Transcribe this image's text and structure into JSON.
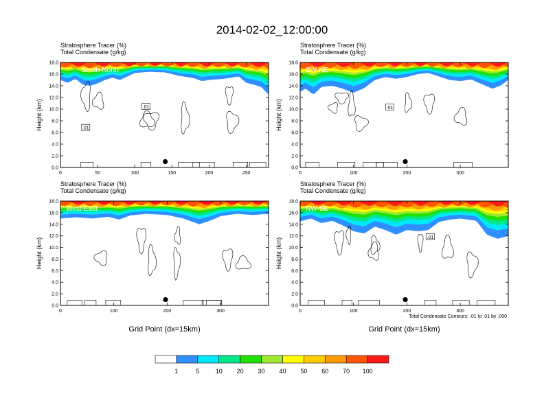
{
  "title": "2014-02-02_12:00:00",
  "chart_data": {
    "type": "heatmap",
    "colorbar": {
      "colors": [
        "#ffffff",
        "#2f8fff",
        "#00e8ff",
        "#00e889",
        "#22e000",
        "#a0e830",
        "#ffff00",
        "#ffcc00",
        "#ff9a00",
        "#ff5500",
        "#ff1a1a"
      ],
      "labels": [
        "1",
        "5",
        "10",
        "20",
        "30",
        "40",
        "50",
        "60",
        "70",
        "100"
      ]
    },
    "contour_note": "Total Condensate Contours: .01 to .01 by .000",
    "panels": [
      {
        "id": "south-north",
        "line1": "Stratosphere Tracer   (%)",
        "line2": "Total Condensate   (g/kg)",
        "region": "South-North",
        "ylabel": "Height (km)",
        "xlabel": "",
        "xlim": [
          0,
          280
        ],
        "ylim": [
          0,
          18
        ],
        "xticks": [
          "0",
          "50",
          "100",
          "150",
          "200",
          "250"
        ],
        "xtick_values": [
          0,
          50,
          100,
          150,
          200,
          250
        ],
        "yticks": [
          "0.0",
          "2.0",
          "4.0",
          "6.0",
          "8.0",
          "10.0",
          "12.0",
          "14.0",
          "16.0",
          "18.0"
        ],
        "marker": {
          "x": 141,
          "y": 1.0
        },
        "contour_labels": [
          {
            "text": ".01",
            "x": 115,
            "y": 10.4
          },
          {
            "text": ".01",
            "x": 34,
            "y": 6.8
          }
        ],
        "tracer_bottom": [
          [
            0,
            15.0
          ],
          [
            10,
            14.5
          ],
          [
            20,
            15.2
          ],
          [
            30,
            14.2
          ],
          [
            40,
            14.0
          ],
          [
            50,
            14.4
          ],
          [
            60,
            15.0
          ],
          [
            70,
            15.4
          ],
          [
            80,
            15.0
          ],
          [
            90,
            15.6
          ],
          [
            100,
            16.2
          ],
          [
            120,
            16.4
          ],
          [
            140,
            16.3
          ],
          [
            160,
            15.7
          ],
          [
            180,
            15.3
          ],
          [
            190,
            14.8
          ],
          [
            200,
            15.0
          ],
          [
            220,
            15.2
          ],
          [
            240,
            15.6
          ],
          [
            250,
            14.5
          ],
          [
            260,
            14.2
          ],
          [
            270,
            13.8
          ],
          [
            280,
            12.5
          ]
        ]
      },
      {
        "id": "sw-ne",
        "line1": "Stratosphere Tracer   (%)",
        "line2": "Total Condensate   (g/kg)",
        "region": "SW-NE",
        "ylabel": "Height (km)",
        "xlabel": "",
        "xlim": [
          0,
          390
        ],
        "ylim": [
          0,
          18
        ],
        "xticks": [
          "0",
          "100",
          "200",
          "300"
        ],
        "xtick_values": [
          0,
          100,
          200,
          300
        ],
        "yticks": [
          "0.0",
          "2.0",
          "4.0",
          "6.0",
          "8.0",
          "10.0",
          "12.0",
          "14.0",
          "16.0",
          "18.0"
        ],
        "marker": {
          "x": 197,
          "y": 1.0
        },
        "contour_labels": [
          {
            "text": ".01",
            "x": 168,
            "y": 10.3
          }
        ],
        "tracer_bottom": [
          [
            0,
            13.0
          ],
          [
            10,
            13.5
          ],
          [
            25,
            12.5
          ],
          [
            40,
            13.8
          ],
          [
            60,
            14.0
          ],
          [
            80,
            13.5
          ],
          [
            100,
            12.8
          ],
          [
            120,
            13.6
          ],
          [
            140,
            15.0
          ],
          [
            160,
            15.5
          ],
          [
            180,
            15.2
          ],
          [
            200,
            15.5
          ],
          [
            220,
            16.0
          ],
          [
            240,
            16.2
          ],
          [
            260,
            15.6
          ],
          [
            280,
            15.0
          ],
          [
            300,
            14.8
          ],
          [
            320,
            15.1
          ],
          [
            340,
            14.3
          ],
          [
            360,
            13.5
          ],
          [
            375,
            14.0
          ],
          [
            390,
            15.0
          ]
        ]
      },
      {
        "id": "west-east",
        "line1": "Stratosphere Tracer   (%)",
        "line2": "Total Condensate   (g/kg)",
        "region": "West-East",
        "ylabel": "Height (km)",
        "xlabel": "Grid Point (dx=15km)",
        "xlim": [
          0,
          390
        ],
        "ylim": [
          0,
          18
        ],
        "xticks": [
          "0",
          "100",
          "200",
          "300"
        ],
        "xtick_values": [
          0,
          100,
          200,
          300
        ],
        "yticks": [
          "0.0",
          "2.0",
          "4.0",
          "6.0",
          "8.0",
          "10.0",
          "12.0",
          "14.0",
          "16.0",
          "18.0"
        ],
        "marker": {
          "x": 197,
          "y": 1.0
        },
        "contour_labels": [],
        "tracer_bottom": [
          [
            0,
            15.0
          ],
          [
            30,
            15.2
          ],
          [
            60,
            15.0
          ],
          [
            90,
            15.3
          ],
          [
            110,
            14.8
          ],
          [
            130,
            15.5
          ],
          [
            160,
            15.8
          ],
          [
            200,
            15.6
          ],
          [
            230,
            15.0
          ],
          [
            260,
            14.0
          ],
          [
            280,
            14.6
          ],
          [
            300,
            15.4
          ],
          [
            330,
            15.8
          ],
          [
            360,
            15.6
          ],
          [
            390,
            15.8
          ]
        ]
      },
      {
        "id": "nw-se",
        "line1": "Stratosphere Tracer   (%)",
        "line2": "Total Condensate   (g/kg)",
        "region": "NW-SE",
        "ylabel": "Height (km)",
        "xlabel": "Grid Point (dx=15km)",
        "xlim": [
          0,
          390
        ],
        "ylim": [
          0,
          18
        ],
        "xticks": [
          "0",
          "100",
          "200",
          "300"
        ],
        "xtick_values": [
          0,
          100,
          200,
          300
        ],
        "yticks": [
          "0.0",
          "2.0",
          "4.0",
          "6.0",
          "8.0",
          "10.0",
          "12.0",
          "14.0",
          "16.0",
          "18.0"
        ],
        "marker": {
          "x": 197,
          "y": 1.0
        },
        "contour_labels": [
          {
            "text": ".01",
            "x": 244,
            "y": 11.8
          }
        ],
        "tracer_bottom": [
          [
            0,
            14.5
          ],
          [
            20,
            15.0
          ],
          [
            40,
            14.2
          ],
          [
            60,
            14.6
          ],
          [
            80,
            13.8
          ],
          [
            100,
            12.8
          ],
          [
            120,
            12.4
          ],
          [
            140,
            13.6
          ],
          [
            160,
            13.0
          ],
          [
            180,
            12.2
          ],
          [
            200,
            13.0
          ],
          [
            220,
            12.8
          ],
          [
            240,
            13.0
          ],
          [
            260,
            14.4
          ],
          [
            280,
            14.8
          ],
          [
            300,
            15.0
          ],
          [
            330,
            14.6
          ],
          [
            350,
            12.2
          ],
          [
            370,
            11.5
          ],
          [
            390,
            12.0
          ]
        ]
      }
    ]
  }
}
